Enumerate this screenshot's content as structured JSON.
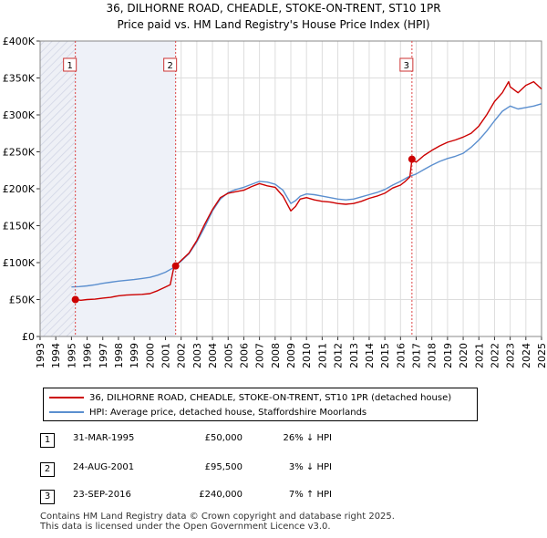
{
  "title_line1": "36, DILHORNE ROAD, CHEADLE, STOKE-ON-TRENT, ST10 1PR",
  "title_line2": "Price paid vs. HM Land Registry's House Price Index (HPI)",
  "chart_data": {
    "type": "line",
    "x_range": [
      1993,
      2025
    ],
    "ylim": [
      0,
      400000
    ],
    "y_ticks": [
      0,
      50000,
      100000,
      150000,
      200000,
      250000,
      300000,
      350000,
      400000
    ],
    "y_tick_labels": [
      "£0",
      "£50K",
      "£100K",
      "£150K",
      "£200K",
      "£250K",
      "£300K",
      "£350K",
      "£400K"
    ],
    "x_ticks": [
      1993,
      1994,
      1995,
      1996,
      1997,
      1998,
      1999,
      2000,
      2001,
      2002,
      2003,
      2004,
      2005,
      2006,
      2007,
      2008,
      2009,
      2010,
      2011,
      2012,
      2013,
      2014,
      2015,
      2016,
      2017,
      2018,
      2019,
      2020,
      2021,
      2022,
      2023,
      2024,
      2025
    ],
    "grid": true,
    "series": [
      {
        "name": "36, DILHORNE ROAD, CHEADLE, STOKE-ON-TRENT, ST10 1PR (detached house)",
        "color": "#cc0000",
        "x": [
          1995.25,
          1995.6,
          1996,
          1996.5,
          1997,
          1997.5,
          1998,
          1998.5,
          1999,
          1999.5,
          2000,
          2000.5,
          2001,
          2001.3,
          2001.55,
          2001.65,
          2002,
          2002.5,
          2003,
          2003.5,
          2004,
          2004.5,
          2005,
          2005.5,
          2006,
          2006.5,
          2007,
          2007.5,
          2008,
          2008.5,
          2009,
          2009.3,
          2009.6,
          2010,
          2010.5,
          2011,
          2011.5,
          2012,
          2012.5,
          2013,
          2013.5,
          2014,
          2014.5,
          2015,
          2015.5,
          2016,
          2016.3,
          2016.6,
          2016.73,
          2016.8,
          2017,
          2017.5,
          2018,
          2018.5,
          2019,
          2019.5,
          2020,
          2020.5,
          2021,
          2021.5,
          2022,
          2022.5,
          2022.9,
          2023,
          2023.5,
          2024,
          2024.5,
          2025
        ],
        "y": [
          50000,
          49000,
          50000,
          50500,
          52000,
          53000,
          55000,
          56000,
          56500,
          57000,
          58000,
          62000,
          67000,
          70000,
          95500,
          96000,
          103000,
          113000,
          130000,
          152000,
          172000,
          188000,
          194000,
          196000,
          198000,
          203000,
          207000,
          204000,
          202000,
          190000,
          170000,
          176000,
          186000,
          188000,
          185000,
          183000,
          182000,
          180000,
          179000,
          180000,
          183000,
          187000,
          190000,
          194000,
          201000,
          205000,
          210000,
          216000,
          240000,
          238000,
          236000,
          245000,
          252000,
          258000,
          263000,
          266000,
          270000,
          275000,
          285000,
          300000,
          318000,
          330000,
          345000,
          338000,
          330000,
          340000,
          345000,
          335000
        ]
      },
      {
        "name": "HPI: Average price, detached house, Staffordshire Moorlands",
        "color": "#5b8fcf",
        "x": [
          1995,
          1995.5,
          1996,
          1996.5,
          1997,
          1997.5,
          1998,
          1998.5,
          1999,
          1999.5,
          2000,
          2000.5,
          2001,
          2001.5,
          2002,
          2002.5,
          2003,
          2003.5,
          2004,
          2004.5,
          2005,
          2005.5,
          2006,
          2006.5,
          2007,
          2007.5,
          2008,
          2008.5,
          2009,
          2009.3,
          2009.6,
          2010,
          2010.5,
          2011,
          2011.5,
          2012,
          2012.5,
          2013,
          2013.5,
          2014,
          2014.5,
          2015,
          2015.5,
          2016,
          2016.5,
          2017,
          2017.5,
          2018,
          2018.5,
          2019,
          2019.5,
          2020,
          2020.5,
          2021,
          2021.5,
          2022,
          2022.5,
          2023,
          2023.5,
          2024,
          2024.5,
          2025
        ],
        "y": [
          67000,
          67500,
          68500,
          70000,
          72000,
          73500,
          75000,
          76000,
          77000,
          78500,
          80000,
          83000,
          87000,
          93000,
          102000,
          112000,
          128000,
          148000,
          170000,
          186000,
          195000,
          199000,
          202000,
          206000,
          210000,
          209000,
          206000,
          198000,
          180000,
          184000,
          190000,
          193000,
          192000,
          190000,
          188000,
          186000,
          185000,
          186000,
          189000,
          192000,
          195000,
          199000,
          205000,
          210000,
          216000,
          220000,
          226000,
          232000,
          237000,
          241000,
          244000,
          248000,
          256000,
          266000,
          278000,
          292000,
          305000,
          312000,
          308000,
          310000,
          312000,
          315000
        ]
      }
    ],
    "sales": [
      {
        "label": "1",
        "x": 1995.25,
        "y": 50000
      },
      {
        "label": "2",
        "x": 2001.65,
        "y": 95500
      },
      {
        "label": "3",
        "x": 2016.73,
        "y": 240000
      }
    ]
  },
  "legend": {
    "red_label": "36, DILHORNE ROAD, CHEADLE, STOKE-ON-TRENT, ST10 1PR (detached house)",
    "blue_label": "HPI: Average price, detached house, Staffordshire Moorlands",
    "red_color": "#cc0000",
    "blue_color": "#5b8fcf"
  },
  "annotations": [
    {
      "num": "1",
      "date": "31-MAR-1995",
      "price": "£50,000",
      "hpi": "26% ↓ HPI"
    },
    {
      "num": "2",
      "date": "24-AUG-2001",
      "price": "£95,500",
      "hpi": "3% ↓ HPI"
    },
    {
      "num": "3",
      "date": "23-SEP-2016",
      "price": "£240,000",
      "hpi": "7% ↑ HPI"
    }
  ],
  "footer_line1": "Contains HM Land Registry data © Crown copyright and database right 2025.",
  "footer_line2": "This data is licensed under the Open Government Licence v3.0."
}
